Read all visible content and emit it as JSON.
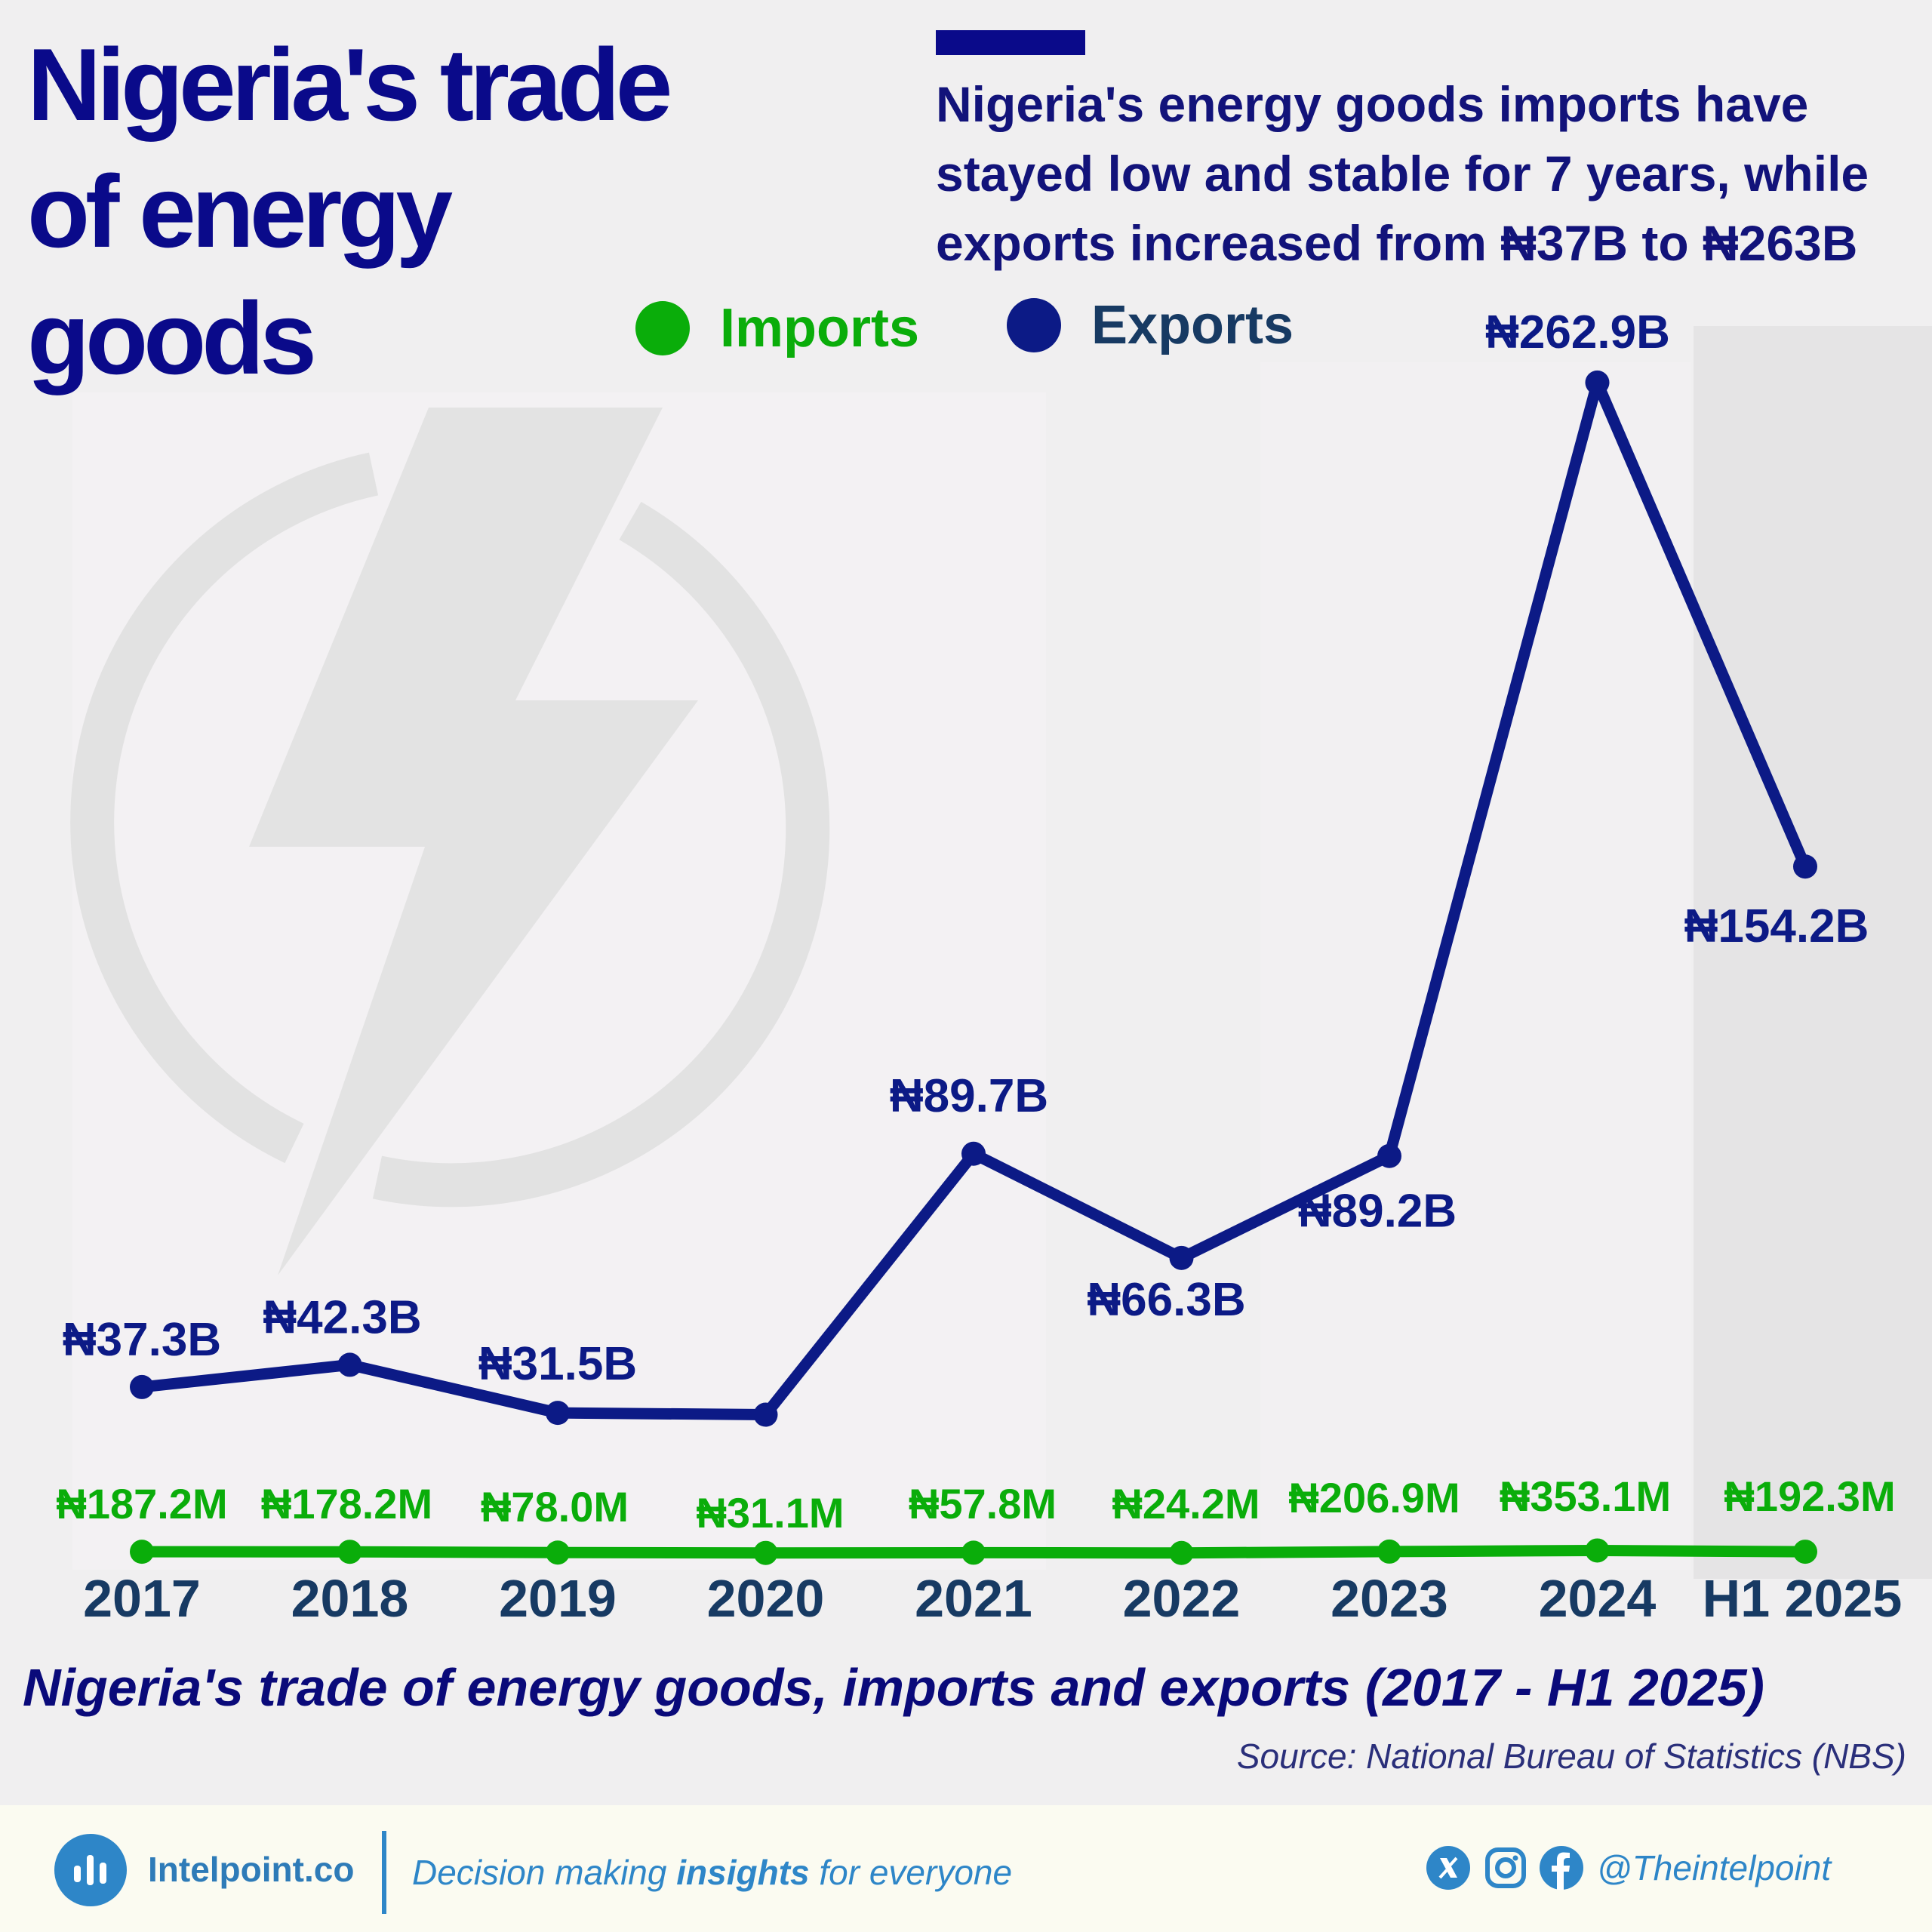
{
  "headline": {
    "line1": "Nigeria's trade",
    "line2": "of energy",
    "line3": "goods"
  },
  "summary": {
    "line1": "Nigeria's energy goods imports have",
    "line2": "stayed low and stable for 7 years, while",
    "line3": "exports increased from ₦37B to ₦263B"
  },
  "legend": {
    "imports_label": "Imports",
    "exports_label": "Exports"
  },
  "colors": {
    "imports": "#0aad0a",
    "exports": "#0c1a86",
    "headline": "#0a0a8a",
    "axis_labels": "#173a63",
    "brand": "#2e86c8"
  },
  "chart_data": {
    "type": "line",
    "categories": [
      "2017",
      "2018",
      "2019",
      "2020",
      "2021",
      "2022",
      "2023",
      "2024",
      "H1 2025"
    ],
    "units": "Naira",
    "series": [
      {
        "name": "Imports",
        "values_millions": [
          187.2,
          178.2,
          78.0,
          31.1,
          57.8,
          24.2,
          206.9,
          353.1,
          192.3
        ],
        "labels": [
          "₦187.2M",
          "₦178.2M",
          "₦78.0M",
          "₦31.1M",
          "₦57.8M",
          "₦24.2M",
          "₦206.9M",
          "₦353.1M",
          "₦192.3M"
        ]
      },
      {
        "name": "Exports",
        "values_billions": [
          37.3,
          42.3,
          31.5,
          31.1,
          89.7,
          66.3,
          89.2,
          262.9,
          154.2
        ],
        "labels": [
          "₦37.3B",
          "₦42.3B",
          "₦31.5B",
          "",
          "₦89.7B",
          "₦66.3B",
          "₦89.2B",
          "₦262.9B",
          "₦154.2B"
        ]
      }
    ],
    "xlabel": "",
    "ylabel": "",
    "ylim_billions": [
      0,
      290
    ],
    "grid": false,
    "legend_position": "top",
    "caption": "Nigeria's trade of energy goods, imports and exports (2017 - H1 2025)",
    "source": "Source: National Bureau of Statistics (NBS)"
  },
  "footer": {
    "brand_name": "Intelpoint.co",
    "tagline_pre": "Decision making ",
    "tagline_bold": "insights",
    "tagline_post": " for everyone",
    "handle": "@Theintelpoint",
    "logo_icon": "bar-chart-icon",
    "social_icons": [
      "x-icon",
      "instagram-icon",
      "facebook-icon"
    ]
  }
}
